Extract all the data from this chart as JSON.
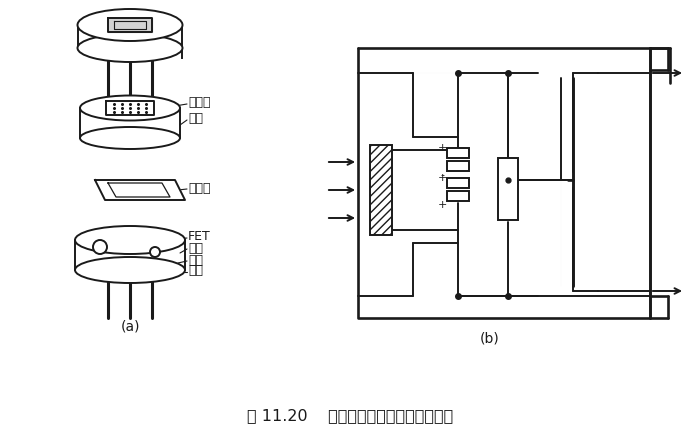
{
  "title": "图 11.20    热释电人体红外传感器的结构",
  "label_a": "(a)",
  "label_b": "(b)",
  "bg_color": "#ffffff",
  "line_color": "#1a1a1a",
  "labels": {
    "filter": "滤光片",
    "cap": "管帽",
    "sensitive": "敏感元",
    "fet": "FET",
    "socket": "管座",
    "resistor": "高阻",
    "lead": "引线"
  }
}
